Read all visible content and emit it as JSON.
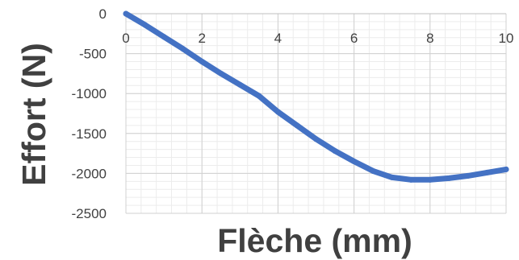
{
  "chart_data": {
    "type": "line",
    "title": "",
    "xlabel": "Flèche (mm)",
    "ylabel": "Effort (N)",
    "xlim": [
      0,
      10
    ],
    "ylim": [
      -2500,
      0
    ],
    "x_ticks": [
      0,
      2,
      4,
      6,
      8,
      10
    ],
    "x_tick_labels": [
      "0",
      "2",
      "4",
      "6",
      "8",
      "10"
    ],
    "y_ticks": [
      0,
      -500,
      -1000,
      -1500,
      -2000,
      -2500
    ],
    "y_tick_labels": [
      "0",
      "-500",
      "-1000",
      "-1500",
      "-2000",
      "-2500"
    ],
    "grid": true,
    "minor_grid": true,
    "x_axis_position": "top",
    "legend": "none",
    "series": [
      {
        "color": "#4472C4",
        "x": [
          0,
          0.5,
          1,
          1.5,
          2,
          2.5,
          3,
          3.5,
          4,
          4.5,
          5,
          5.5,
          6,
          6.5,
          7,
          7.5,
          8,
          8.5,
          9,
          9.5,
          10
        ],
        "y": [
          0,
          -140,
          -290,
          -440,
          -600,
          -750,
          -890,
          -1030,
          -1230,
          -1400,
          -1570,
          -1720,
          -1850,
          -1970,
          -2050,
          -2080,
          -2080,
          -2060,
          -2030,
          -1990,
          -1950
        ]
      }
    ]
  }
}
